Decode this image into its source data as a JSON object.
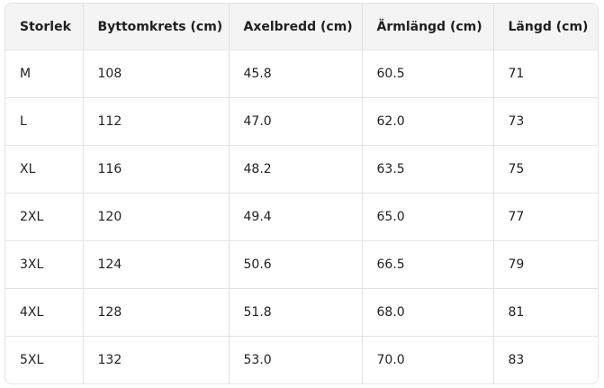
{
  "table": {
    "header": [
      "Storlek",
      "Byttomkrets (cm)",
      "Axelbredd (cm)",
      "Ärmlängd (cm)",
      "Längd (cm)"
    ],
    "rows": [
      [
        "M",
        "108",
        "45.8",
        "60.5",
        "71"
      ],
      [
        "L",
        "112",
        "47.0",
        "62.0",
        "73"
      ],
      [
        "XL",
        "116",
        "48.2",
        "63.5",
        "75"
      ],
      [
        "2XL",
        "120",
        "49.4",
        "65.0",
        "77"
      ],
      [
        "3XL",
        "124",
        "50.6",
        "66.5",
        "79"
      ],
      [
        "4XL",
        "128",
        "51.8",
        "68.0",
        "81"
      ],
      [
        "5XL",
        "132",
        "53.0",
        "70.0",
        "83"
      ]
    ]
  }
}
